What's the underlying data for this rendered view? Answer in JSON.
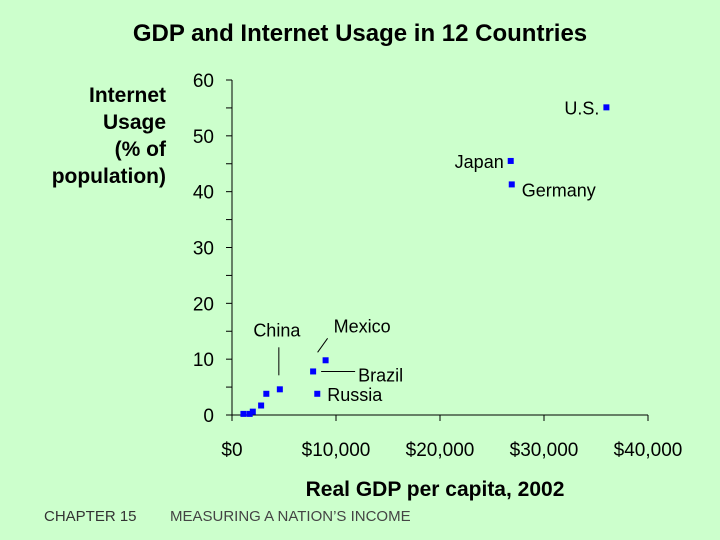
{
  "chart_data": {
    "type": "scatter",
    "title": "GDP and Internet Usage in 12 Countries",
    "xlabel": "Real GDP per capita, 2002",
    "ylabel": [
      "Internet",
      "Usage",
      "(% of",
      "population)"
    ],
    "xlim": [
      0,
      40000
    ],
    "ylim": [
      0,
      60
    ],
    "x_ticks": [
      0,
      10000,
      20000,
      30000,
      40000
    ],
    "x_tick_labels": [
      "$0",
      "$10,000",
      "$20,000",
      "$30,000",
      "$40,000"
    ],
    "y_ticks": [
      0,
      10,
      20,
      30,
      40,
      50,
      60
    ],
    "y_tick_labels": [
      "0",
      "10",
      "20",
      "30",
      "40",
      "50",
      "60"
    ],
    "marker_color": "#0000ff",
    "points": [
      {
        "x": 36000,
        "y": 55.1,
        "label": "U.S."
      },
      {
        "x": 26800,
        "y": 45.5,
        "label": "Japan"
      },
      {
        "x": 26900,
        "y": 41.3,
        "label": "Germany"
      },
      {
        "x": 9000,
        "y": 9.8,
        "label": "Mexico"
      },
      {
        "x": 7800,
        "y": 7.8,
        "label": "Brazil"
      },
      {
        "x": 8200,
        "y": 3.8,
        "label": "Russia"
      },
      {
        "x": 4600,
        "y": 4.6,
        "label": "China"
      },
      {
        "x": 3300,
        "y": 3.8,
        "label": ""
      },
      {
        "x": 2800,
        "y": 1.7,
        "label": ""
      },
      {
        "x": 2000,
        "y": 0.6,
        "label": ""
      },
      {
        "x": 1100,
        "y": 0.2,
        "label": ""
      },
      {
        "x": 1700,
        "y": 0.2,
        "label": ""
      }
    ]
  },
  "footer": {
    "chapter": "CHAPTER 15",
    "subject": "MEASURING A NATION’S INCOME"
  }
}
